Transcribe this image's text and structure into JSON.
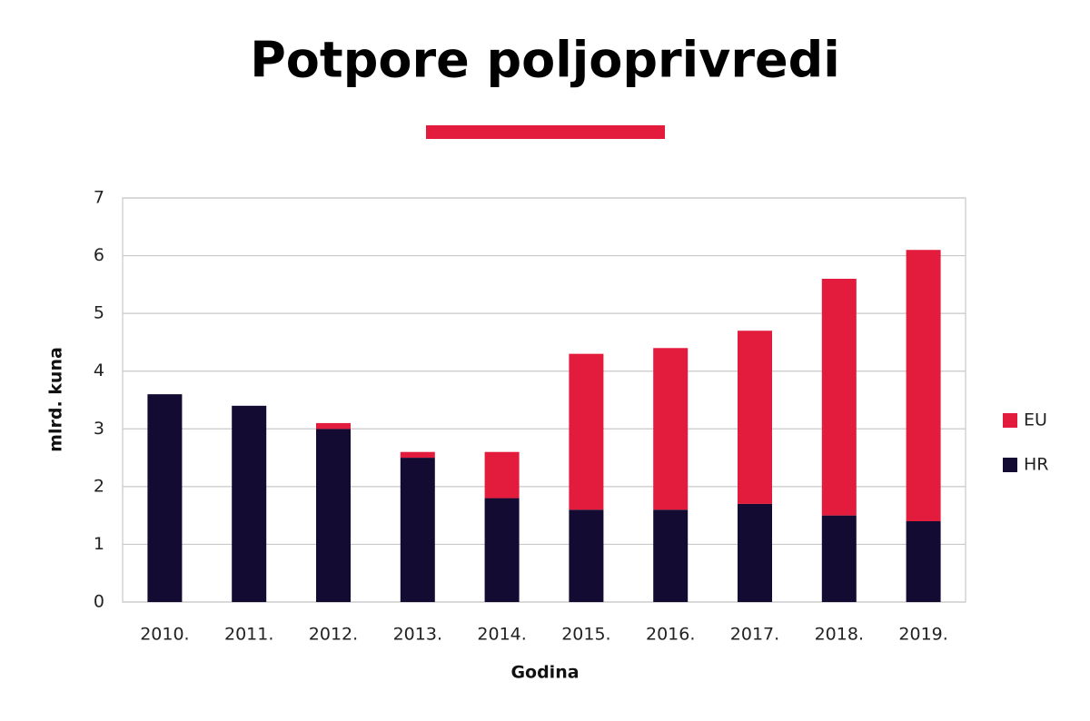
{
  "chart_data": {
    "type": "stacked-bar",
    "title": "Potpore poljoprivredi",
    "x_label": "Godina",
    "y_label": "mlrd. kuna",
    "categories": [
      "2010.",
      "2011.",
      "2012.",
      "2013.",
      "2014.",
      "2015.",
      "2016.",
      "2017.",
      "2018.",
      "2019."
    ],
    "series": [
      {
        "name": "HR",
        "color": "#140b33",
        "values": [
          3.6,
          3.4,
          3.0,
          2.5,
          1.8,
          1.6,
          1.6,
          1.7,
          1.5,
          1.4
        ]
      },
      {
        "name": "EU",
        "color": "#e31b3c",
        "values": [
          0,
          0,
          0.1,
          0.1,
          0.8,
          2.7,
          2.8,
          3.0,
          4.1,
          4.7
        ]
      }
    ],
    "ylim": [
      0,
      7
    ],
    "yticks": [
      0,
      1,
      2,
      3,
      4,
      5,
      6,
      7
    ],
    "grid": true,
    "legend": "right"
  }
}
